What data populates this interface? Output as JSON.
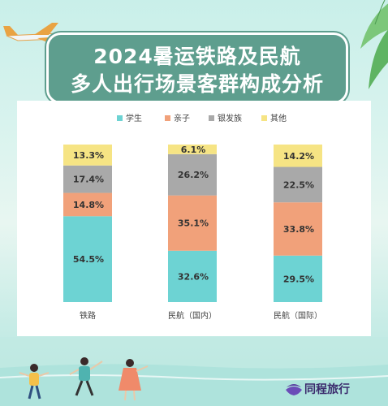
{
  "title_line1": "2024暑运铁路及民航",
  "title_line2": "多人出行场景客群构成分析",
  "brand": "同程旅行",
  "colors": {
    "学生": "#6dd3d3",
    "亲子": "#f1a17a",
    "银发族": "#a9a9a9",
    "其他": "#f6e484"
  },
  "chart_data": {
    "type": "bar",
    "stacked": true,
    "normalized": true,
    "title": "2024暑运铁路及民航 多人出行场景客群构成分析",
    "categories": [
      "铁路",
      "民航（国内）",
      "民航（国际）"
    ],
    "series": [
      {
        "name": "学生",
        "values": [
          54.5,
          32.6,
          29.5
        ],
        "labels": [
          "54.5%",
          "32.6%",
          "29.5%"
        ]
      },
      {
        "name": "亲子",
        "values": [
          14.8,
          35.1,
          33.8
        ],
        "labels": [
          "14.8%",
          "35.1%",
          "33.8%"
        ]
      },
      {
        "name": "银发族",
        "values": [
          17.4,
          26.2,
          22.5
        ],
        "labels": [
          "17.4%",
          "26.2%",
          "22.5%"
        ]
      },
      {
        "name": "其他",
        "values": [
          13.3,
          6.1,
          14.2
        ],
        "labels": [
          "13.3%",
          "6.1%",
          "14.2%"
        ]
      }
    ],
    "ylim": [
      0,
      100
    ],
    "legend_position": "top",
    "grid": false
  }
}
